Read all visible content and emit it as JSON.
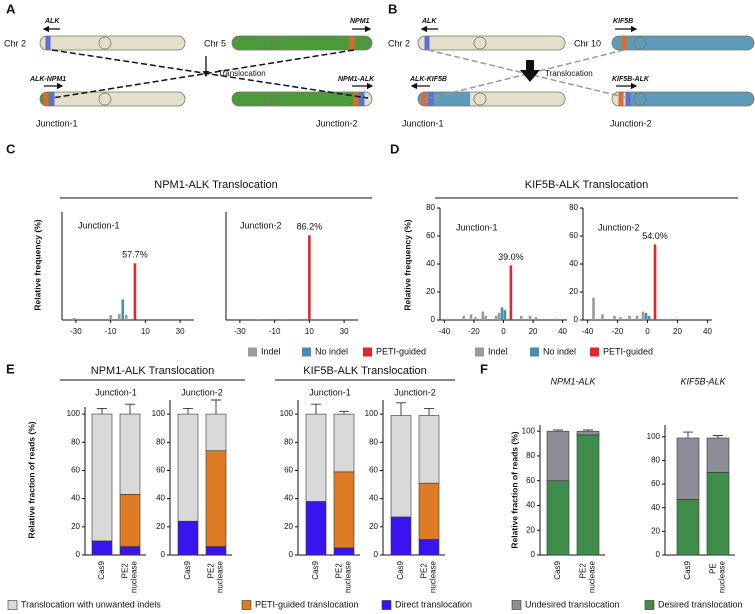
{
  "diagrams": [
    {
      "panel": "A",
      "labels": {
        "chr_left": "Chr 2",
        "gene_left": "ALK",
        "chr_right": "Chr 5",
        "gene_right": "NPM1",
        "event": "Translocation",
        "fusion_left": "ALK-NPM1",
        "fusion_right": "NPM1-ALK",
        "junction_left": "Junction-1",
        "junction_right": "Junction-2"
      }
    },
    {
      "panel": "B",
      "labels": {
        "chr_left": "Chr 2",
        "gene_left": "ALK",
        "chr_right": "Chr 10",
        "gene_right": "KIF5B",
        "event": "Translocation",
        "fusion_left": "ALK-KIF5B",
        "fusion_right": "KIF5B-ALK",
        "junction_left": "Junction-1",
        "junction_right": "Junction-2"
      }
    }
  ],
  "chart_data": [
    {
      "type": "bar",
      "panel": "C",
      "group_title": "NPM1-ALK Translocation",
      "subtitle": "Junction-1",
      "ylabel": "Relative frequency (%)",
      "xlim": [
        -38,
        38
      ],
      "xticks": [
        -30,
        -10,
        10,
        30
      ],
      "ylim": [
        0,
        110
      ],
      "series": [
        {
          "name": "Indel",
          "color": "#9a9a9a",
          "x": [
            -31,
            -10,
            -5,
            -1
          ],
          "values": [
            2,
            5,
            6,
            5
          ]
        },
        {
          "name": "No indel",
          "color": "#4a8db3",
          "x": [
            -3
          ],
          "values": [
            21
          ]
        },
        {
          "name": "PETI-guided",
          "color": "#e3262b",
          "x": [
            4
          ],
          "values": [
            57.7
          ],
          "value_labels": [
            "57.7%"
          ]
        }
      ]
    },
    {
      "type": "bar",
      "subtitle": "Junction-2",
      "xlim": [
        -38,
        38
      ],
      "xticks": [
        -30,
        -10,
        10,
        30
      ],
      "ylim": [
        0,
        110
      ],
      "series": [
        {
          "color": "#9a9a9a",
          "x": [
            -20,
            -3
          ],
          "values": [
            1,
            1
          ]
        },
        {
          "color": "#4a8db3",
          "x": [
            -10
          ],
          "values": [
            1
          ]
        },
        {
          "color": "#e3262b",
          "x": [
            10
          ],
          "values": [
            86.2
          ],
          "value_labels": [
            "86.2%"
          ]
        }
      ]
    },
    {
      "type": "bar",
      "panel": "D",
      "group_title": "KIF5B-ALK Translocation",
      "subtitle": "Junction-1",
      "ylabel": "Relative frequency (%)",
      "xlim": [
        -43,
        43
      ],
      "xticks": [
        -40,
        -20,
        0,
        20,
        40
      ],
      "ylim": [
        0,
        80
      ],
      "yticks": [
        0,
        20,
        40,
        60,
        80
      ],
      "series": [
        {
          "name": "Indel",
          "color": "#9a9a9a",
          "x": [
            -38,
            -27,
            -22,
            -19,
            -14,
            -12,
            -5,
            -3,
            12,
            18,
            22,
            35
          ],
          "values": [
            1,
            3,
            4,
            2,
            6,
            3,
            3,
            5,
            3,
            3,
            2,
            1
          ]
        },
        {
          "name": "No indel",
          "color": "#4a8db3",
          "x": [
            -1,
            1
          ],
          "values": [
            9,
            7
          ]
        },
        {
          "name": "PETI-guided",
          "color": "#e3262b",
          "x": [
            5
          ],
          "values": [
            39
          ],
          "value_labels": [
            "39.0%"
          ]
        }
      ]
    },
    {
      "type": "bar",
      "subtitle": "Junction-2",
      "xlim": [
        -43,
        43
      ],
      "xticks": [
        -40,
        -20,
        0,
        20,
        40
      ],
      "ylim": [
        0,
        80
      ],
      "yticks": [
        0,
        20,
        40,
        60,
        80
      ],
      "series": [
        {
          "color": "#9a9a9a",
          "x": [
            -36,
            -30,
            -22,
            -18,
            -12,
            -7,
            -3,
            12,
            20
          ],
          "values": [
            16,
            4,
            3,
            2,
            3,
            3,
            6,
            1,
            1
          ]
        },
        {
          "color": "#4a8db3",
          "x": [
            -1,
            1
          ],
          "values": [
            5,
            3
          ]
        },
        {
          "color": "#e3262b",
          "x": [
            5
          ],
          "values": [
            54
          ],
          "value_labels": [
            "54.0%"
          ]
        }
      ]
    },
    {
      "type": "stacked_bar",
      "panel": "E",
      "group_title": "NPM1-ALK Translocation",
      "subtitle": "Junction-1",
      "ylabel": "Relative fraction of reads (%)",
      "categories": [
        "Cas9",
        "PE2 nuclease"
      ],
      "ylim": [
        0,
        105
      ],
      "yticks": [
        0,
        20,
        40,
        60,
        80,
        100
      ],
      "series": [
        {
          "name": "Direct translocation",
          "color": "#3a14f0",
          "values": [
            10,
            6
          ],
          "errors": [
            3,
            2
          ]
        },
        {
          "name": "PETI-guided translocation",
          "color": "#df7b24",
          "values": [
            0,
            37
          ],
          "errors": [
            0,
            7
          ]
        },
        {
          "name": "Translocation with unwanted indels",
          "color": "#d9d9d9",
          "values": [
            90,
            57
          ],
          "errors": [
            4,
            7
          ]
        }
      ]
    },
    {
      "type": "stacked_bar",
      "subtitle": "Junction-2",
      "categories": [
        "Cas9",
        "PE2 nuclease"
      ],
      "ylim": [
        0,
        110
      ],
      "yticks": [
        0,
        20,
        40,
        60,
        80,
        100
      ],
      "series": [
        {
          "color": "#3a14f0",
          "values": [
            24,
            6
          ],
          "errors": [
            4,
            2
          ]
        },
        {
          "color": "#df7b24",
          "values": [
            0,
            68
          ],
          "errors": [
            0,
            12
          ]
        },
        {
          "color": "#d9d9d9",
          "values": [
            76,
            26
          ],
          "errors": [
            4,
            10
          ]
        }
      ]
    },
    {
      "type": "stacked_bar",
      "group_title": "KIF5B-ALK Translocation",
      "subtitle": "Junction-1",
      "categories": [
        "Cas9",
        "PE2 nuclease"
      ],
      "ylim": [
        0,
        110
      ],
      "yticks": [
        0,
        20,
        40,
        60,
        80,
        100
      ],
      "series": [
        {
          "color": "#3a14f0",
          "values": [
            38,
            5
          ],
          "errors": [
            6,
            3
          ]
        },
        {
          "color": "#df7b24",
          "values": [
            0,
            54
          ],
          "errors": [
            0,
            5
          ]
        },
        {
          "color": "#d9d9d9",
          "values": [
            62,
            41
          ],
          "errors": [
            7,
            2
          ]
        }
      ]
    },
    {
      "type": "stacked_bar",
      "subtitle": "Junction-2",
      "categories": [
        "Cas9",
        "PE2 nuclease"
      ],
      "ylim": [
        0,
        110
      ],
      "yticks": [
        0,
        20,
        40,
        60,
        80,
        100
      ],
      "series": [
        {
          "color": "#3a14f0",
          "values": [
            27,
            11
          ],
          "errors": [
            9,
            4
          ]
        },
        {
          "color": "#df7b24",
          "values": [
            0,
            40
          ],
          "errors": [
            0,
            3
          ]
        },
        {
          "color": "#d9d9d9",
          "values": [
            72,
            48
          ],
          "errors": [
            9,
            5
          ]
        }
      ]
    },
    {
      "type": "stacked_bar",
      "panel": "F",
      "title": "NPM1-ALK",
      "ylabel": "Relative fraction of reads (%)",
      "categories": [
        "Cas9",
        "PE2 nuclease"
      ],
      "ylim": [
        0,
        105
      ],
      "yticks": [
        0,
        20,
        40,
        60,
        80,
        100
      ],
      "series": [
        {
          "name": "Desired translocation",
          "color": "#3f8c4b",
          "values": [
            60,
            97
          ]
        },
        {
          "name": "Undesired translocation",
          "color": "#8e8e98",
          "values": [
            40,
            3
          ],
          "errors": [
            1,
            1
          ]
        }
      ]
    },
    {
      "type": "stacked_bar",
      "title": "KIF5B-ALK",
      "categories": [
        "Cas9",
        "PE nuclease"
      ],
      "ylim": [
        0,
        110
      ],
      "yticks": [
        0,
        20,
        40,
        60,
        80,
        100
      ],
      "series": [
        {
          "color": "#3f8c4b",
          "values": [
            47,
            70
          ],
          "errors": [
            6,
            2
          ]
        },
        {
          "color": "#8e8e98",
          "values": [
            52,
            29
          ],
          "errors": [
            5,
            2
          ]
        }
      ]
    }
  ]
}
